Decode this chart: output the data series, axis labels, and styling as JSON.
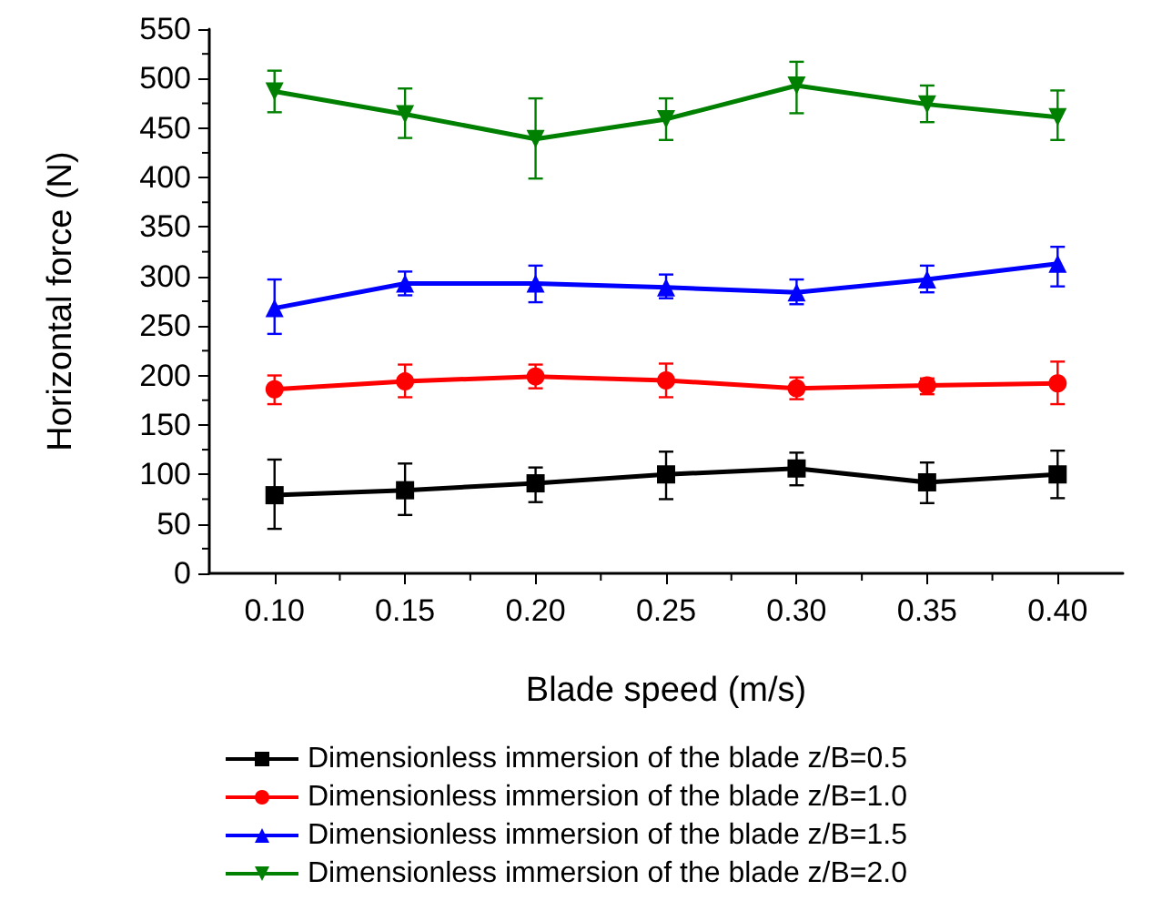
{
  "chart_data": {
    "type": "line",
    "xlabel": "Blade speed (m/s)",
    "ylabel": "Horizontal force (N)",
    "x": [
      0.1,
      0.15,
      0.2,
      0.25,
      0.3,
      0.35,
      0.4
    ],
    "xlim": [
      0.075,
      0.425
    ],
    "xticks": [
      {
        "value": 0.1,
        "label": "0.10"
      },
      0.15,
      {
        "value": 0.2,
        "label": "0.20"
      },
      0.25,
      {
        "value": 0.3,
        "label": "0.30"
      },
      0.35,
      {
        "value": 0.4,
        "label": "0.40"
      }
    ],
    "ylim": [
      0,
      550
    ],
    "yticks": [
      0,
      50,
      100,
      150,
      200,
      250,
      300,
      350,
      400,
      450,
      500,
      550
    ],
    "grid": false,
    "legend": "bottom",
    "line_style": "solid",
    "series": [
      {
        "name": "Dimensionless immersion of the blade z/B=0.5",
        "color": "#000000",
        "marker": "square",
        "values": [
          79,
          84,
          91,
          100,
          106,
          92,
          100
        ],
        "errors": [
          [
            45,
            115
          ],
          [
            59,
            111
          ],
          [
            72,
            107
          ],
          [
            75,
            123
          ],
          [
            89,
            122
          ],
          [
            71,
            112
          ],
          [
            76,
            124
          ]
        ]
      },
      {
        "name": "Dimensionless immersion of the blade z/B=1.0",
        "color": "#ff0000",
        "marker": "circle",
        "values": [
          186,
          194,
          199,
          195,
          187,
          190,
          192
        ],
        "errors": [
          [
            171,
            200
          ],
          [
            178,
            211
          ],
          [
            187,
            211
          ],
          [
            178,
            212
          ],
          [
            176,
            198
          ],
          [
            181,
            197
          ],
          [
            171,
            214
          ]
        ]
      },
      {
        "name": "Dimensionless immersion of the blade z/B=1.5",
        "color": "#0000ff",
        "marker": "triangle",
        "values": [
          268,
          293,
          293,
          289,
          284,
          297,
          313
        ],
        "errors": [
          [
            242,
            297
          ],
          [
            281,
            305
          ],
          [
            274,
            311
          ],
          [
            278,
            302
          ],
          [
            272,
            297
          ],
          [
            284,
            311
          ],
          [
            290,
            330
          ]
        ]
      },
      {
        "name": "Dimensionless immersion of the blade z/B=2.0",
        "color": "#008000",
        "marker": "triangle_down",
        "values": [
          487,
          464,
          439,
          459,
          493,
          474,
          461
        ],
        "errors": [
          [
            466,
            508
          ],
          [
            440,
            490
          ],
          [
            399,
            480
          ],
          [
            438,
            480
          ],
          [
            465,
            517
          ],
          [
            456,
            493
          ],
          [
            438,
            488
          ]
        ]
      }
    ]
  }
}
